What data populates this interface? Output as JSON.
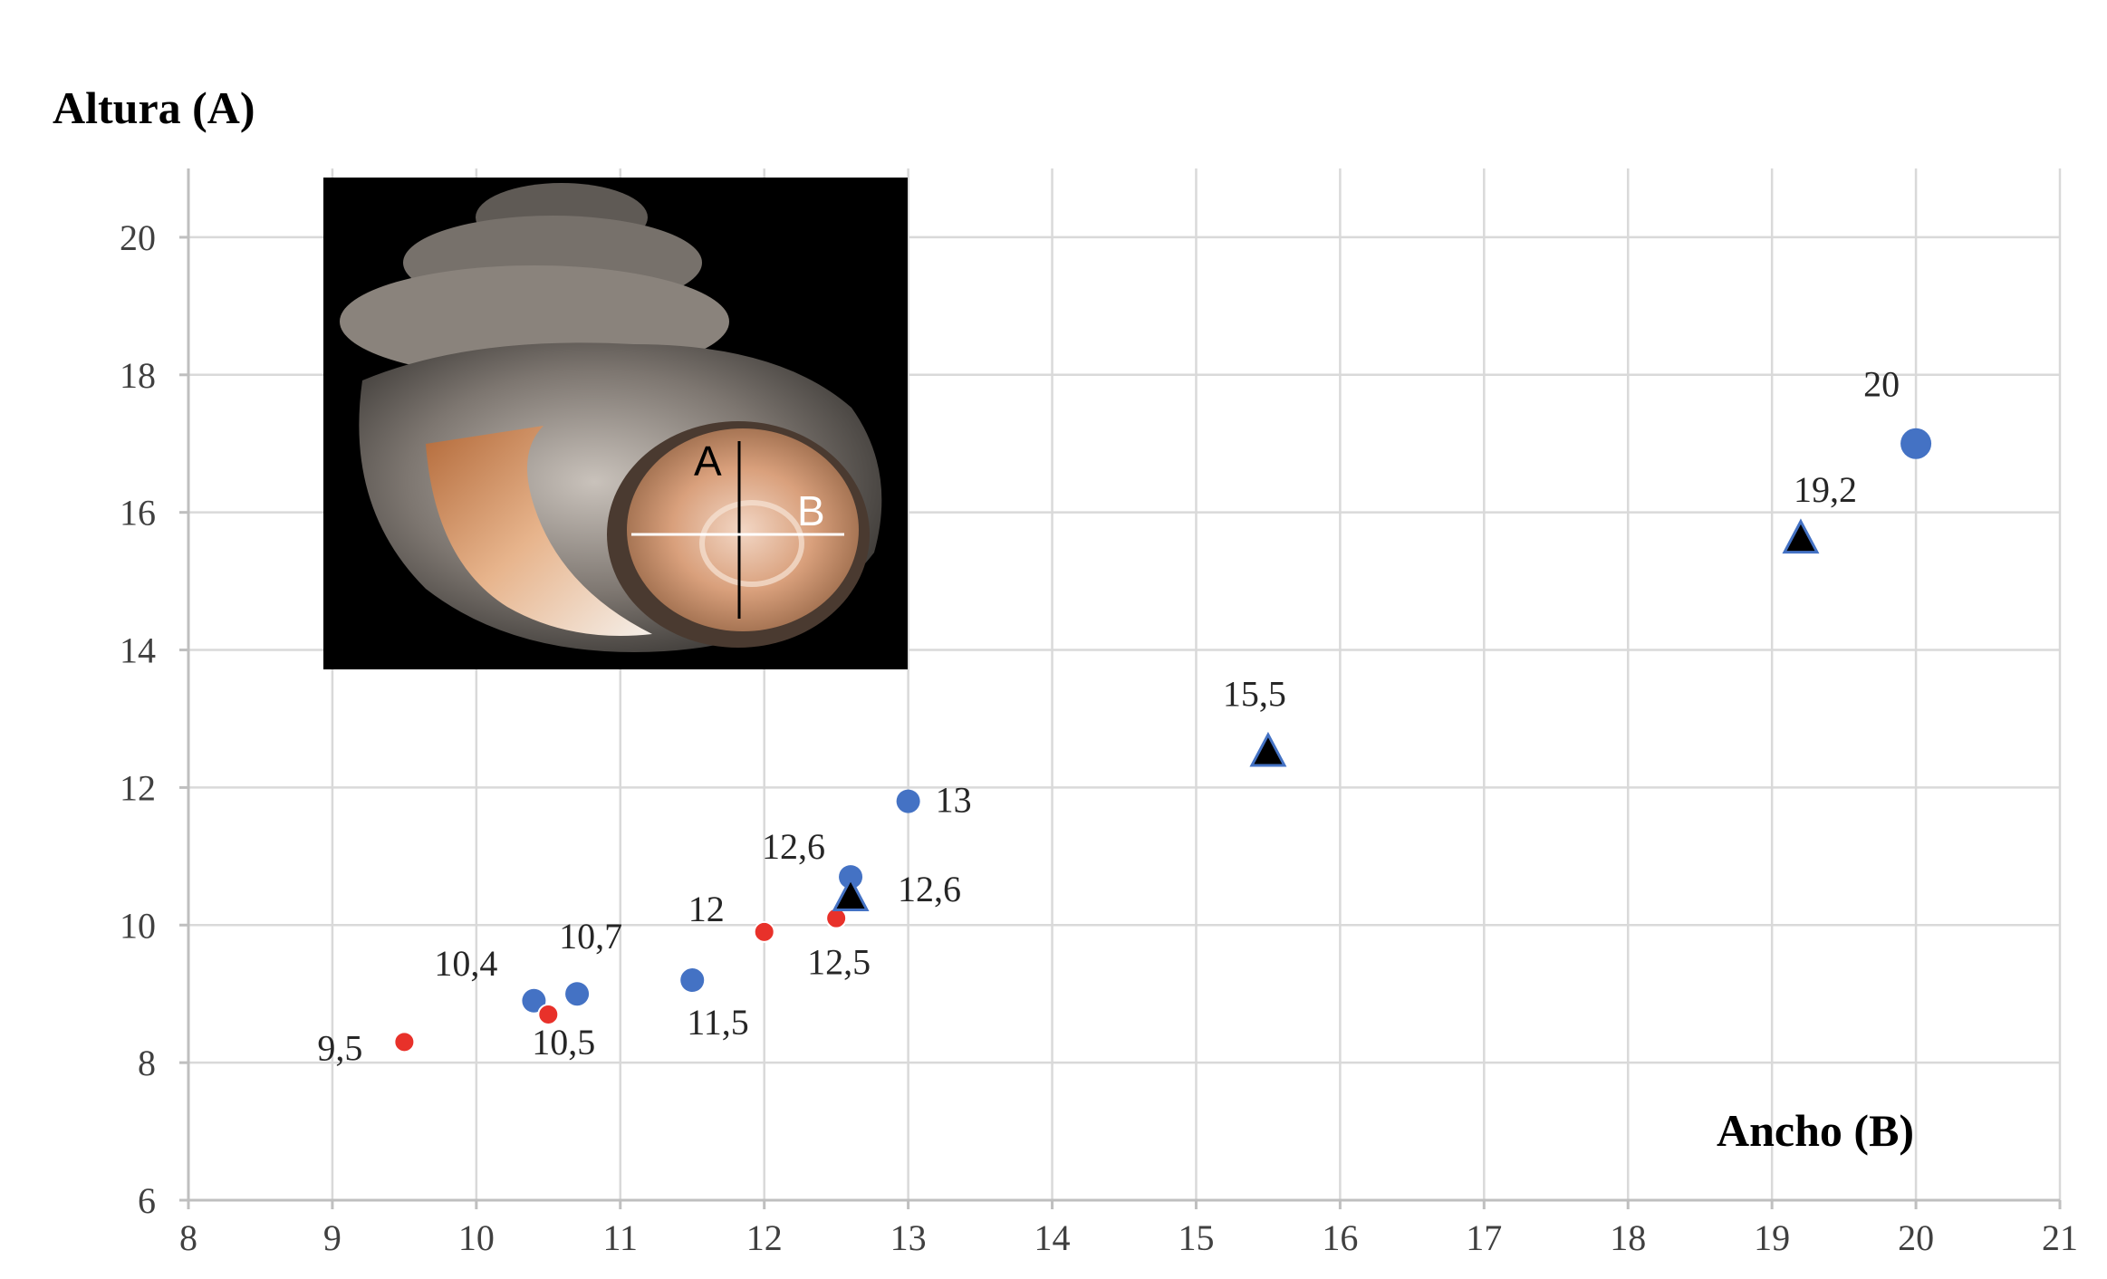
{
  "chart_data": {
    "type": "scatter",
    "title": "",
    "ylabel": "Altura (A)",
    "xlabel": "Ancho (B)",
    "xlim": [
      8,
      21
    ],
    "ylim": [
      6,
      21
    ],
    "xticks": [
      "8",
      "9",
      "10",
      "11",
      "12",
      "13",
      "14",
      "15",
      "16",
      "17",
      "18",
      "19",
      "20",
      "21"
    ],
    "yticks": [
      "6",
      "8",
      "10",
      "12",
      "14",
      "16",
      "18",
      "20"
    ],
    "grid": true,
    "legend": "none",
    "colors": {
      "blue": "#4472c4",
      "red": "#e8312a",
      "black": "#000000",
      "grid": "#d9d9d9",
      "axis": "#bfbfbf"
    },
    "inset_image": {
      "description_label_a": "A",
      "description_label_b": "B"
    },
    "series": [
      {
        "marker": "circle",
        "color": "#4472c4",
        "points": [
          {
            "x": 10.4,
            "y": 8.9,
            "label": "10,4"
          },
          {
            "x": 10.7,
            "y": 9.0,
            "label": "10,7"
          },
          {
            "x": 11.5,
            "y": 9.2,
            "label": "11,5"
          },
          {
            "x": 12.6,
            "y": 10.7,
            "label": "12,6"
          },
          {
            "x": 13.0,
            "y": 11.8,
            "label": "13"
          },
          {
            "x": 20.0,
            "y": 17.0,
            "label": "20"
          }
        ]
      },
      {
        "marker": "circle",
        "color": "#e8312a",
        "points": [
          {
            "x": 9.5,
            "y": 8.3,
            "label": "9,5"
          },
          {
            "x": 10.5,
            "y": 8.7,
            "label": "10,5"
          },
          {
            "x": 12.0,
            "y": 9.9,
            "label": "12"
          },
          {
            "x": 12.5,
            "y": 10.1,
            "label": "12,5"
          }
        ]
      },
      {
        "marker": "triangle",
        "color": "#000000",
        "points": [
          {
            "x": 12.6,
            "y": 10.4,
            "label": "12,6"
          },
          {
            "x": 15.5,
            "y": 12.5,
            "label": "15,5"
          },
          {
            "x": 19.2,
            "y": 15.6,
            "label": "19,2"
          }
        ]
      }
    ]
  }
}
